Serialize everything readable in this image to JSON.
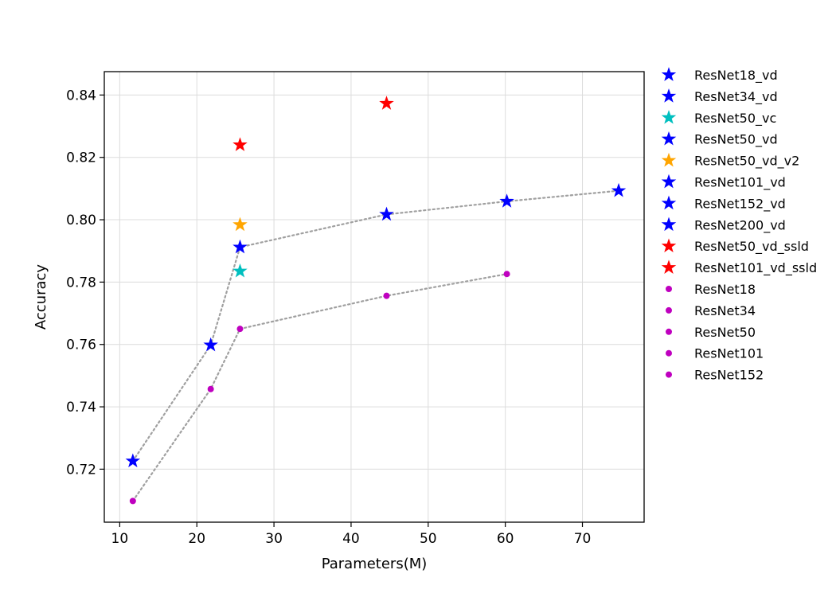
{
  "chart_data": {
    "type": "scatter",
    "title": "",
    "xlabel": "Parameters(M)",
    "ylabel": "Accuracy",
    "xlim": [
      8,
      78
    ],
    "ylim": [
      0.703,
      0.8475
    ],
    "xticks": [
      10,
      20,
      30,
      40,
      50,
      60,
      70
    ],
    "yticks": [
      0.72,
      0.74,
      0.76,
      0.78,
      0.8,
      0.82,
      0.84
    ],
    "xtick_labels": [
      "10",
      "20",
      "30",
      "40",
      "50",
      "60",
      "70"
    ],
    "ytick_labels": [
      "0.72",
      "0.74",
      "0.76",
      "0.78",
      "0.80",
      "0.82",
      "0.84"
    ],
    "grid": true,
    "legend_position": "outside-right",
    "series": [
      {
        "name": "ResNet18_vd",
        "marker": "star",
        "color": "#0000ff",
        "x": [
          11.7
        ],
        "y": [
          0.7226
        ]
      },
      {
        "name": "ResNet34_vd",
        "marker": "star",
        "color": "#0000ff",
        "x": [
          21.8
        ],
        "y": [
          0.7598
        ]
      },
      {
        "name": "ResNet50_vc",
        "marker": "star",
        "color": "#00bfbf",
        "x": [
          25.6
        ],
        "y": [
          0.7835
        ]
      },
      {
        "name": "ResNet50_vd",
        "marker": "star",
        "color": "#0000ff",
        "x": [
          25.6
        ],
        "y": [
          0.7912
        ]
      },
      {
        "name": "ResNet50_vd_v2",
        "marker": "star",
        "color": "#ffa500",
        "x": [
          25.6
        ],
        "y": [
          0.7984
        ]
      },
      {
        "name": "ResNet101_vd",
        "marker": "star",
        "color": "#0000ff",
        "x": [
          44.6
        ],
        "y": [
          0.8017
        ]
      },
      {
        "name": "ResNet152_vd",
        "marker": "star",
        "color": "#0000ff",
        "x": [
          60.2
        ],
        "y": [
          0.8059
        ]
      },
      {
        "name": "ResNet200_vd",
        "marker": "star",
        "color": "#0000ff",
        "x": [
          74.7
        ],
        "y": [
          0.8093
        ]
      },
      {
        "name": "ResNet50_vd_ssld",
        "marker": "star",
        "color": "#ff0000",
        "x": [
          25.6
        ],
        "y": [
          0.824
        ]
      },
      {
        "name": "ResNet101_vd_ssld",
        "marker": "star",
        "color": "#ff0000",
        "x": [
          44.6
        ],
        "y": [
          0.8373
        ]
      },
      {
        "name": "ResNet18",
        "marker": "dot",
        "color": "#bf00bf",
        "x": [
          11.7
        ],
        "y": [
          0.7098
        ]
      },
      {
        "name": "ResNet34",
        "marker": "dot",
        "color": "#bf00bf",
        "x": [
          21.8
        ],
        "y": [
          0.7457
        ]
      },
      {
        "name": "ResNet50",
        "marker": "dot",
        "color": "#bf00bf",
        "x": [
          25.6
        ],
        "y": [
          0.765
        ]
      },
      {
        "name": "ResNet101",
        "marker": "dot",
        "color": "#bf00bf",
        "x": [
          44.6
        ],
        "y": [
          0.7756
        ]
      },
      {
        "name": "ResNet152",
        "marker": "dot",
        "color": "#bf00bf",
        "x": [
          60.2
        ],
        "y": [
          0.7826
        ]
      }
    ],
    "lines": [
      {
        "style": "dotted",
        "color": "#a0a0a0",
        "points": [
          [
            11.7,
            0.7226
          ],
          [
            21.8,
            0.7598
          ],
          [
            25.6,
            0.7912
          ],
          [
            44.6,
            0.8017
          ],
          [
            60.2,
            0.8059
          ],
          [
            74.7,
            0.8093
          ]
        ]
      },
      {
        "style": "dotted",
        "color": "#a0a0a0",
        "points": [
          [
            11.7,
            0.7098
          ],
          [
            21.8,
            0.7457
          ],
          [
            25.6,
            0.765
          ],
          [
            44.6,
            0.7756
          ],
          [
            60.2,
            0.7826
          ]
        ]
      }
    ]
  }
}
